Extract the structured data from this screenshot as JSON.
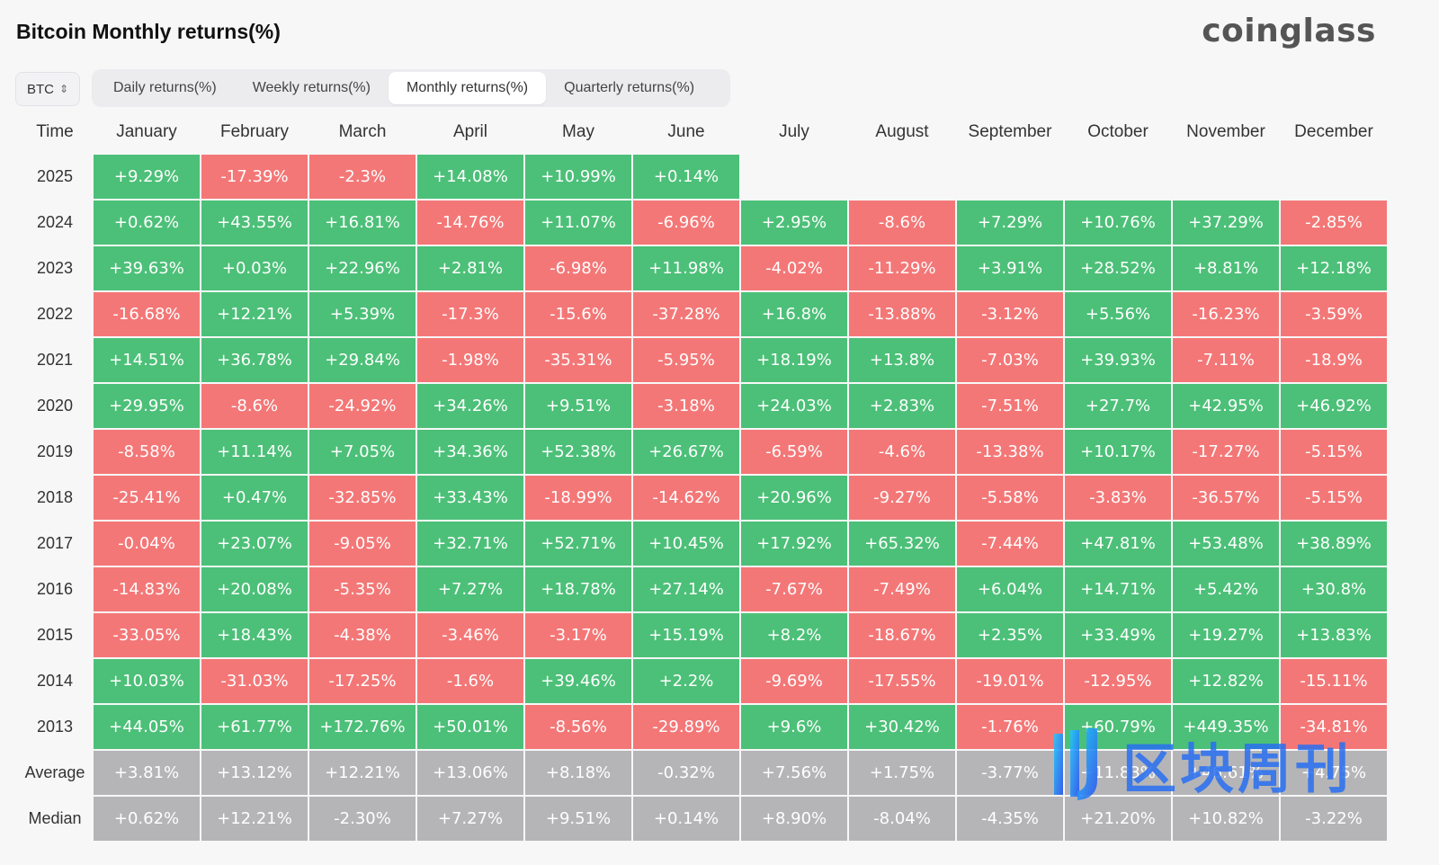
{
  "page": {
    "title": "Bitcoin Monthly returns(%)",
    "logo": "coinglass"
  },
  "controls": {
    "asset": "BTC",
    "tabs": [
      {
        "label": "Daily returns(%)",
        "active": false
      },
      {
        "label": "Weekly returns(%)",
        "active": false
      },
      {
        "label": "Monthly returns(%)",
        "active": true
      },
      {
        "label": "Quarterly returns(%)",
        "active": false
      }
    ]
  },
  "colors": {
    "positive": "#4cc078",
    "negative": "#f47777",
    "stat": "#b5b5b8"
  },
  "table": {
    "time_header": "Time",
    "months": [
      "January",
      "February",
      "March",
      "April",
      "May",
      "June",
      "July",
      "August",
      "September",
      "October",
      "November",
      "December"
    ],
    "rows": [
      {
        "year": "2025",
        "values": [
          "+9.29%",
          "-17.39%",
          "-2.3%",
          "+14.08%",
          "+10.99%",
          "+0.14%",
          "",
          "",
          "",
          "",
          "",
          ""
        ]
      },
      {
        "year": "2024",
        "values": [
          "+0.62%",
          "+43.55%",
          "+16.81%",
          "-14.76%",
          "+11.07%",
          "-6.96%",
          "+2.95%",
          "-8.6%",
          "+7.29%",
          "+10.76%",
          "+37.29%",
          "-2.85%"
        ]
      },
      {
        "year": "2023",
        "values": [
          "+39.63%",
          "+0.03%",
          "+22.96%",
          "+2.81%",
          "-6.98%",
          "+11.98%",
          "-4.02%",
          "-11.29%",
          "+3.91%",
          "+28.52%",
          "+8.81%",
          "+12.18%"
        ]
      },
      {
        "year": "2022",
        "values": [
          "-16.68%",
          "+12.21%",
          "+5.39%",
          "-17.3%",
          "-15.6%",
          "-37.28%",
          "+16.8%",
          "-13.88%",
          "-3.12%",
          "+5.56%",
          "-16.23%",
          "-3.59%"
        ]
      },
      {
        "year": "2021",
        "values": [
          "+14.51%",
          "+36.78%",
          "+29.84%",
          "-1.98%",
          "-35.31%",
          "-5.95%",
          "+18.19%",
          "+13.8%",
          "-7.03%",
          "+39.93%",
          "-7.11%",
          "-18.9%"
        ]
      },
      {
        "year": "2020",
        "values": [
          "+29.95%",
          "-8.6%",
          "-24.92%",
          "+34.26%",
          "+9.51%",
          "-3.18%",
          "+24.03%",
          "+2.83%",
          "-7.51%",
          "+27.7%",
          "+42.95%",
          "+46.92%"
        ]
      },
      {
        "year": "2019",
        "values": [
          "-8.58%",
          "+11.14%",
          "+7.05%",
          "+34.36%",
          "+52.38%",
          "+26.67%",
          "-6.59%",
          "-4.6%",
          "-13.38%",
          "+10.17%",
          "-17.27%",
          "-5.15%"
        ]
      },
      {
        "year": "2018",
        "values": [
          "-25.41%",
          "+0.47%",
          "-32.85%",
          "+33.43%",
          "-18.99%",
          "-14.62%",
          "+20.96%",
          "-9.27%",
          "-5.58%",
          "-3.83%",
          "-36.57%",
          "-5.15%"
        ]
      },
      {
        "year": "2017",
        "values": [
          "-0.04%",
          "+23.07%",
          "-9.05%",
          "+32.71%",
          "+52.71%",
          "+10.45%",
          "+17.92%",
          "+65.32%",
          "-7.44%",
          "+47.81%",
          "+53.48%",
          "+38.89%"
        ]
      },
      {
        "year": "2016",
        "values": [
          "-14.83%",
          "+20.08%",
          "-5.35%",
          "+7.27%",
          "+18.78%",
          "+27.14%",
          "-7.67%",
          "-7.49%",
          "+6.04%",
          "+14.71%",
          "+5.42%",
          "+30.8%"
        ]
      },
      {
        "year": "2015",
        "values": [
          "-33.05%",
          "+18.43%",
          "-4.38%",
          "-3.46%",
          "-3.17%",
          "+15.19%",
          "+8.2%",
          "-18.67%",
          "+2.35%",
          "+33.49%",
          "+19.27%",
          "+13.83%"
        ]
      },
      {
        "year": "2014",
        "values": [
          "+10.03%",
          "-31.03%",
          "-17.25%",
          "-1.6%",
          "+39.46%",
          "+2.2%",
          "-9.69%",
          "-17.55%",
          "-19.01%",
          "-12.95%",
          "+12.82%",
          "-15.11%"
        ]
      },
      {
        "year": "2013",
        "values": [
          "+44.05%",
          "+61.77%",
          "+172.76%",
          "+50.01%",
          "-8.56%",
          "-29.89%",
          "+9.6%",
          "+30.42%",
          "-1.76%",
          "+60.79%",
          "+449.35%",
          "-34.81%"
        ]
      }
    ],
    "stats": [
      {
        "label": "Average",
        "values": [
          "+3.81%",
          "+13.12%",
          "+12.21%",
          "+13.06%",
          "+8.18%",
          "-0.32%",
          "+7.56%",
          "+1.75%",
          "-3.77%",
          "+11.83%",
          "+46.61%",
          "+4.75%"
        ]
      },
      {
        "label": "Median",
        "values": [
          "+0.62%",
          "+12.21%",
          "-2.30%",
          "+7.27%",
          "+9.51%",
          "+0.14%",
          "+8.90%",
          "-8.04%",
          "-4.35%",
          "+21.20%",
          "+10.82%",
          "-3.22%"
        ]
      }
    ]
  },
  "watermark": {
    "text": "区块周刊"
  }
}
